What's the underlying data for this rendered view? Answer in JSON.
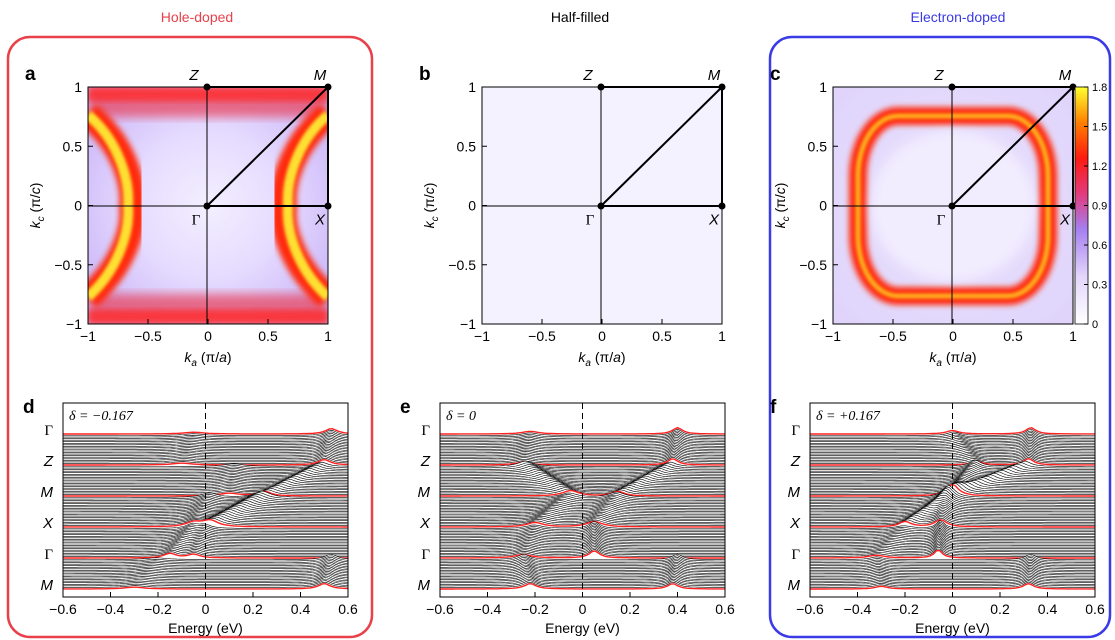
{
  "figure": {
    "columns": [
      {
        "title": "Hole-doped",
        "color": "#e8414a"
      },
      {
        "title": "Half-filled",
        "color": "#000000"
      },
      {
        "title": "Electron-doped",
        "color": "#3a3ae6"
      }
    ],
    "top_panels": [
      {
        "letter": "a",
        "kind": "hole"
      },
      {
        "letter": "b",
        "kind": "half"
      },
      {
        "letter": "c",
        "kind": "electron"
      }
    ],
    "bottom_panels": [
      {
        "letter": "d",
        "delta_label": "δ = −0.167"
      },
      {
        "letter": "e",
        "delta_label": "δ = 0"
      },
      {
        "letter": "f",
        "delta_label": "δ = +0.167"
      }
    ],
    "sym_points_top": {
      "Z": "Z",
      "M": "M",
      "G": "Γ",
      "X": "X"
    },
    "path_labels": [
      "Γ",
      "Z",
      "M",
      "X",
      "Γ",
      "M"
    ],
    "colorbar": {
      "ticks": [
        "1.8",
        "1.5",
        "1.2",
        "0.9",
        "0.6",
        "0.3",
        "0"
      ]
    }
  },
  "chart_data": [
    {
      "type": "heatmap",
      "panel": "a",
      "title": "Hole-doped",
      "xlabel": "k_a (π/a)",
      "ylabel": "k_c (π/c)",
      "xlim": [
        -1,
        1
      ],
      "ylim": [
        -1,
        1
      ],
      "xticks": [
        "−1",
        "−0.5",
        "0",
        "0.5",
        "1"
      ],
      "yticks": [
        "1",
        "0.5",
        "0",
        "−0.5",
        "−1"
      ],
      "high_points": {
        "Z": [
          0,
          1
        ],
        "M": [
          1,
          1
        ],
        "Γ": [
          0,
          0
        ],
        "X": [
          1,
          0
        ]
      }
    },
    {
      "type": "heatmap",
      "panel": "b",
      "title": "Half-filled",
      "xlabel": "k_a (π/a)",
      "ylabel": "k_c (π/c)",
      "xlim": [
        -1,
        1
      ],
      "ylim": [
        -1,
        1
      ],
      "xticks": [
        "−1",
        "−0.5",
        "0",
        "0.5",
        "1"
      ],
      "yticks": [
        "1",
        "0.5",
        "0",
        "−0.5",
        "−1"
      ],
      "high_points": {
        "Z": [
          0,
          1
        ],
        "M": [
          1,
          1
        ],
        "Γ": [
          0,
          0
        ],
        "X": [
          1,
          0
        ]
      }
    },
    {
      "type": "heatmap",
      "panel": "c",
      "title": "Electron-doped",
      "xlabel": "k_a (π/a)",
      "ylabel": "k_c (π/c)",
      "xlim": [
        -1,
        1
      ],
      "ylim": [
        -1,
        1
      ],
      "xticks": [
        "−1",
        "−0.5",
        "0",
        "0.5",
        "1"
      ],
      "yticks": [
        "1",
        "0.5",
        "0",
        "−0.5",
        "−1"
      ],
      "colorbar_range": [
        0,
        1.8
      ],
      "high_points": {
        "Z": [
          0,
          1
        ],
        "M": [
          1,
          1
        ],
        "Γ": [
          0,
          0
        ],
        "X": [
          1,
          0
        ]
      }
    },
    {
      "type": "line",
      "panel": "d",
      "xlabel": "Energy (eV)",
      "xlim": [
        -0.6,
        0.6
      ],
      "xticks": [
        "−0.6",
        "−0.4",
        "−0.2",
        "0",
        "0.2",
        "0.4",
        "0.6"
      ],
      "ytick_labels": [
        "Γ",
        "Z",
        "M",
        "X",
        "Γ",
        "M"
      ],
      "annotation": "δ = −0.167"
    },
    {
      "type": "line",
      "panel": "e",
      "xlabel": "Energy (eV)",
      "xlim": [
        -0.6,
        0.6
      ],
      "xticks": [
        "−0.6",
        "−0.4",
        "−0.2",
        "0",
        "0.2",
        "0.4",
        "0.6"
      ],
      "ytick_labels": [
        "Γ",
        "Z",
        "M",
        "X",
        "Γ",
        "M"
      ],
      "annotation": "δ = 0"
    },
    {
      "type": "line",
      "panel": "f",
      "xlabel": "Energy (eV)",
      "xlim": [
        -0.6,
        0.6
      ],
      "xticks": [
        "−0.6",
        "−0.4",
        "−0.2",
        "0",
        "0.2",
        "0.4",
        "0.6"
      ],
      "ytick_labels": [
        "Γ",
        "Z",
        "M",
        "X",
        "Γ",
        "M"
      ],
      "annotation": "δ = +0.167"
    }
  ]
}
